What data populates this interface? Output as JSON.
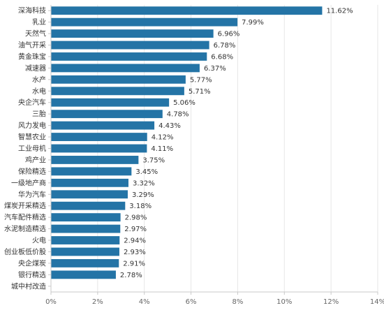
{
  "chart_data": {
    "type": "bar",
    "orientation": "horizontal",
    "title": "",
    "xlabel": "",
    "ylabel": "",
    "categories": [
      "深海科技",
      "乳业",
      "天然气",
      "油气开采",
      "黄金珠宝",
      "减速器",
      "水产",
      "水电",
      "央企汽车",
      "三胎",
      "风力发电",
      "智慧农业",
      "工业母机",
      "鸡产业",
      "保险精选",
      "一级地产商",
      "华为汽车",
      "煤炭开采精选",
      "汽车配件精选",
      "水泥制造精选",
      "火电",
      "创业板低价股",
      "央企煤炭",
      "银行精选",
      "城中村改造"
    ],
    "values": [
      11.62,
      7.99,
      6.96,
      6.78,
      6.68,
      6.37,
      5.77,
      5.71,
      5.06,
      4.78,
      4.43,
      4.12,
      4.11,
      3.75,
      3.45,
      3.32,
      3.29,
      3.18,
      2.98,
      2.97,
      2.94,
      2.93,
      2.91,
      2.78,
      null
    ],
    "value_labels": [
      "11.62%",
      "7.99%",
      "6.96%",
      "6.78%",
      "6.68%",
      "6.37%",
      "5.77%",
      "5.71%",
      "5.06%",
      "4.78%",
      "4.43%",
      "4.12%",
      "4.11%",
      "3.75%",
      "3.45%",
      "3.32%",
      "3.29%",
      "3.18%",
      "2.98%",
      "2.97%",
      "2.94%",
      "2.93%",
      "2.91%",
      "2.78%",
      ""
    ],
    "xlim": [
      0,
      14
    ],
    "x_ticks": [
      "0%",
      "2%",
      "4%",
      "6%",
      "8%",
      "10%",
      "12%",
      "14%"
    ],
    "grid": true,
    "legend": "none",
    "colors": {
      "bar": "#2474a6",
      "grid": "#e6e6e6",
      "axis": "#c8c8c8"
    }
  }
}
